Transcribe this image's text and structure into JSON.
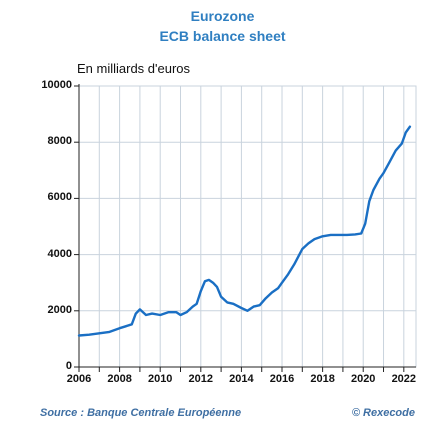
{
  "chart_data": {
    "type": "line",
    "title": "Eurozone",
    "subtitle": "ECB balance sheet",
    "unit_label": "En milliards d'euros",
    "ylim": [
      0,
      10000
    ],
    "yticks": [
      0,
      2000,
      4000,
      6000,
      8000,
      10000
    ],
    "xlim": [
      2006,
      2022.6
    ],
    "xticks": [
      2006,
      2008,
      2010,
      2012,
      2014,
      2016,
      2018,
      2020,
      2022
    ],
    "grid": true,
    "line_color": "#1a6fc4",
    "series": [
      {
        "x": [
          2006.0,
          2006.5,
          2007.0,
          2007.5,
          2008.0,
          2008.3,
          2008.6,
          2008.8,
          2009.0,
          2009.3,
          2009.6,
          2010.0,
          2010.4,
          2010.8,
          2011.0,
          2011.3,
          2011.6,
          2011.8,
          2012.0,
          2012.2,
          2012.4,
          2012.6,
          2012.8,
          2013.0,
          2013.3,
          2013.6,
          2014.0,
          2014.3,
          2014.6,
          2014.9,
          2015.2,
          2015.5,
          2015.8,
          2016.0,
          2016.3,
          2016.6,
          2017.0,
          2017.3,
          2017.6,
          2018.0,
          2018.4,
          2018.8,
          2019.2,
          2019.6,
          2019.9,
          2020.1,
          2020.3,
          2020.5,
          2020.8,
          2021.0,
          2021.3,
          2021.6,
          2021.9,
          2022.1,
          2022.3
        ],
        "y": [
          1120,
          1150,
          1200,
          1250,
          1380,
          1450,
          1520,
          1900,
          2050,
          1850,
          1900,
          1850,
          1950,
          1950,
          1850,
          1950,
          2150,
          2250,
          2700,
          3050,
          3100,
          3000,
          2850,
          2500,
          2300,
          2250,
          2100,
          2000,
          2150,
          2200,
          2450,
          2650,
          2800,
          3000,
          3300,
          3650,
          4200,
          4400,
          4550,
          4650,
          4700,
          4700,
          4700,
          4720,
          4750,
          5100,
          5900,
          6300,
          6700,
          6900,
          7300,
          7700,
          7950,
          8350,
          8550
        ]
      }
    ]
  },
  "footer": {
    "source": "Source : Banque Centrale Européenne",
    "credit": "© Rexecode"
  }
}
